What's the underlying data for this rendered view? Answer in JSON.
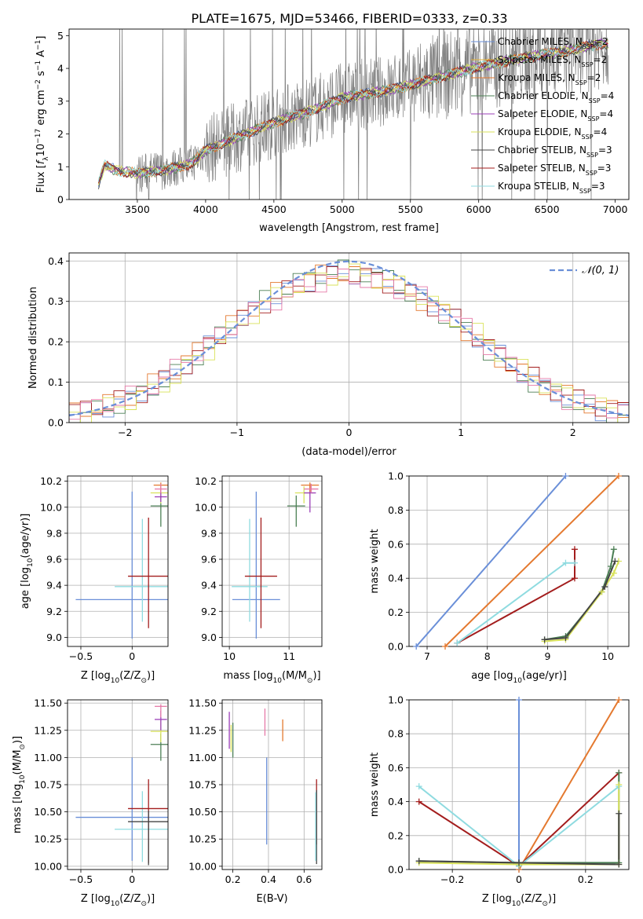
{
  "figure_title": "PLATE=1675, MJD=53466, FIBERID=0333, z=0.33",
  "colors": {
    "chabrier_miles": "#6a8fd8",
    "salpeter_miles": "#e6b43c",
    "kroupa_miles": "#e4792f",
    "chabrier_elodie": "#4b7f54",
    "salpeter_elodie": "#9b3fb8",
    "kroupa_elodie": "#d9e25a",
    "chabrier_stelib": "#444444",
    "salpeter_stelib": "#a31d1d",
    "kroupa_stelib": "#8fdbe0",
    "data": "#808080",
    "pink": "#e67aa8",
    "normal_curve": "#6a8fd8"
  },
  "chart_data": [
    {
      "id": "spectrum",
      "type": "line",
      "title": "PLATE=1675, MJD=53466, FIBERID=0333, z=0.33",
      "xlabel": "wavelength [Angstrom, rest frame]",
      "ylabel_parts": [
        "Flux [",
        "f",
        "λ",
        "10",
        "−17",
        " erg cm",
        "−2",
        " s",
        "−1",
        " A",
        "−1",
        "]"
      ],
      "xlim": [
        3000,
        7100
      ],
      "ylim": [
        0,
        5.2
      ],
      "xticks": [
        3500,
        4000,
        4500,
        5000,
        5500,
        6000,
        6500,
        7000
      ],
      "yticks": [
        0,
        1,
        2,
        3,
        4,
        5
      ],
      "grid": false,
      "legend_position": "top-right",
      "legend": [
        {
          "name": "Chabrier MILES, N",
          "sub": "SSP",
          "tail": "=2",
          "color_key": "chabrier_miles"
        },
        {
          "name": "Salpeter MILES, N",
          "sub": "SSP",
          "tail": "=2",
          "color_key": "salpeter_miles"
        },
        {
          "name": "Kroupa MILES, N",
          "sub": "SSP",
          "tail": "=2",
          "color_key": "kroupa_miles"
        },
        {
          "name": "Chabrier ELODIE, N",
          "sub": "SSP",
          "tail": "=4",
          "color_key": "chabrier_elodie"
        },
        {
          "name": "Salpeter ELODIE, N",
          "sub": "SSP",
          "tail": "=4",
          "color_key": "salpeter_elodie"
        },
        {
          "name": "Kroupa ELODIE, N",
          "sub": "SSP",
          "tail": "=4",
          "color_key": "kroupa_elodie"
        },
        {
          "name": "Chabrier STELIB, N",
          "sub": "SSP",
          "tail": "=3",
          "color_key": "chabrier_stelib"
        },
        {
          "name": "Salpeter STELIB, N",
          "sub": "SSP",
          "tail": "=3",
          "color_key": "salpeter_stelib"
        },
        {
          "name": "Kroupa STELIB, N",
          "sub": "SSP",
          "tail": "=3",
          "color_key": "kroupa_stelib"
        }
      ],
      "continuum": {
        "x": [
          3200,
          3260,
          3300,
          3400,
          3500,
          3700,
          3900,
          4000,
          4200,
          4500,
          4800,
          5000,
          5300,
          5600,
          6000,
          6300,
          6600,
          6900
        ],
        "y": [
          0.3,
          1.05,
          0.95,
          0.85,
          0.8,
          0.9,
          1.1,
          1.5,
          1.85,
          2.35,
          2.75,
          3.1,
          3.3,
          3.6,
          4.05,
          4.3,
          4.5,
          4.75
        ]
      }
    },
    {
      "id": "residuals",
      "type": "line",
      "xlabel": "(data-model)/error",
      "ylabel": "Normed distribution",
      "xlim": [
        -2.5,
        2.5
      ],
      "ylim": [
        0,
        0.42
      ],
      "xticks": [
        -2,
        -1,
        0,
        1,
        2
      ],
      "yticks": [
        0.0,
        0.1,
        0.2,
        0.3,
        0.4
      ],
      "grid": true,
      "legend_position": "top-right",
      "legend_label": "𝒩(0, 1)",
      "series": [
        {
          "color_key": "chabrier_miles",
          "values": [
            0.02,
            0.03,
            0.05,
            0.08,
            0.12,
            0.17,
            0.22,
            0.27,
            0.31,
            0.34,
            0.36,
            0.37,
            0.36,
            0.34,
            0.31,
            0.27,
            0.22,
            0.17,
            0.12,
            0.08,
            0.05,
            0.03,
            0.02
          ]
        },
        {
          "color_key": "kroupa_miles",
          "values": [
            0.03,
            0.04,
            0.06,
            0.09,
            0.13,
            0.18,
            0.23,
            0.28,
            0.32,
            0.35,
            0.37,
            0.37,
            0.36,
            0.33,
            0.3,
            0.26,
            0.21,
            0.16,
            0.12,
            0.09,
            0.06,
            0.04,
            0.03
          ]
        },
        {
          "color_key": "chabrier_elodie",
          "values": [
            0.02,
            0.03,
            0.05,
            0.08,
            0.12,
            0.17,
            0.22,
            0.28,
            0.32,
            0.35,
            0.37,
            0.38,
            0.37,
            0.34,
            0.3,
            0.26,
            0.21,
            0.16,
            0.11,
            0.08,
            0.05,
            0.03,
            0.02
          ]
        },
        {
          "color_key": "salpeter_stelib",
          "values": [
            0.03,
            0.04,
            0.06,
            0.08,
            0.12,
            0.17,
            0.22,
            0.27,
            0.31,
            0.34,
            0.36,
            0.37,
            0.36,
            0.33,
            0.3,
            0.27,
            0.22,
            0.17,
            0.13,
            0.09,
            0.06,
            0.04,
            0.03
          ]
        },
        {
          "color_key": "kroupa_elodie",
          "values": [
            0.02,
            0.03,
            0.05,
            0.07,
            0.11,
            0.16,
            0.21,
            0.26,
            0.31,
            0.34,
            0.36,
            0.37,
            0.36,
            0.34,
            0.31,
            0.27,
            0.23,
            0.18,
            0.13,
            0.09,
            0.06,
            0.04,
            0.02
          ]
        },
        {
          "color_key": "pink",
          "values": [
            0.03,
            0.04,
            0.06,
            0.09,
            0.13,
            0.18,
            0.22,
            0.27,
            0.3,
            0.33,
            0.35,
            0.36,
            0.35,
            0.33,
            0.31,
            0.27,
            0.22,
            0.17,
            0.12,
            0.08,
            0.05,
            0.04,
            0.03
          ]
        }
      ]
    },
    {
      "id": "age_vs_Z",
      "type": "scatter",
      "xlabel_parts": [
        "Z [log",
        "10",
        "(Z/Z",
        "⊙",
        ")]"
      ],
      "ylabel_parts": [
        "age  [log",
        "10",
        "(age/yr)]"
      ],
      "xlim": [
        -0.63,
        0.35
      ],
      "ylim": [
        8.93,
        10.24
      ],
      "xticks": [
        -0.5,
        0.0
      ],
      "yticks": [
        9.0,
        9.2,
        9.4,
        9.6,
        9.8,
        10.0,
        10.2
      ],
      "grid": true,
      "points": [
        {
          "color_key": "chabrier_miles",
          "x": 0.0,
          "xerr": 0.55,
          "y": 9.29,
          "yerr_low": 0.3,
          "yerr_high": 0.83
        },
        {
          "color_key": "kroupa_stelib",
          "x": 0.1,
          "xerr": 0.27,
          "y": 9.39,
          "yerr_low": 0.27,
          "yerr_high": 0.52
        },
        {
          "color_key": "salpeter_stelib",
          "x": 0.16,
          "xerr": 0.2,
          "y": 9.47,
          "yerr_low": 0.4,
          "yerr_high": 0.45
        },
        {
          "color_key": "chabrier_elodie",
          "x": 0.28,
          "xerr": 0.1,
          "y": 10.01,
          "yerr_low": 0.16,
          "yerr_high": 0.08
        },
        {
          "color_key": "kroupa_elodie",
          "x": 0.28,
          "xerr": 0.1,
          "y": 10.11,
          "yerr_low": 0.08,
          "yerr_high": 0.05
        },
        {
          "color_key": "kroupa_miles",
          "x": 0.28,
          "xerr": 0.07,
          "y": 10.17,
          "yerr_low": 0.05,
          "yerr_high": 0.02
        },
        {
          "color_key": "salpeter_elodie",
          "x": 0.28,
          "xerr": 0.06,
          "y": 10.08,
          "yerr_low": 0.04,
          "yerr_high": 0.05
        },
        {
          "color_key": "pink",
          "x": 0.28,
          "xerr": 0.06,
          "y": 10.14,
          "yerr_low": 0.03,
          "yerr_high": 0.04
        }
      ]
    },
    {
      "id": "age_vs_mass",
      "type": "scatter",
      "xlabel_parts": [
        "mass [log",
        "10",
        "(M/M",
        "⊙",
        ")]"
      ],
      "xlim": [
        9.88,
        11.55
      ],
      "ylim": [
        8.93,
        10.24
      ],
      "xticks": [
        10,
        11
      ],
      "yticks": [
        9.0,
        9.2,
        9.4,
        9.6,
        9.8,
        10.0,
        10.2
      ],
      "grid": true,
      "points": [
        {
          "color_key": "chabrier_miles",
          "x": 10.45,
          "xerr": 0.4,
          "y": 9.29,
          "yerr_low": 0.3,
          "yerr_high": 0.83
        },
        {
          "color_key": "kroupa_stelib",
          "x": 10.34,
          "xerr": 0.3,
          "y": 9.39,
          "yerr_low": 0.27,
          "yerr_high": 0.52
        },
        {
          "color_key": "salpeter_stelib",
          "x": 10.53,
          "xerr": 0.27,
          "y": 9.47,
          "yerr_low": 0.4,
          "yerr_high": 0.45
        },
        {
          "color_key": "chabrier_elodie",
          "x": 11.12,
          "xerr": 0.15,
          "y": 10.01,
          "yerr_low": 0.16,
          "yerr_high": 0.08
        },
        {
          "color_key": "kroupa_elodie",
          "x": 11.25,
          "xerr": 0.15,
          "y": 10.11,
          "yerr_low": 0.08,
          "yerr_high": 0.05
        },
        {
          "color_key": "salpeter_elodie",
          "x": 11.35,
          "xerr": 0.1,
          "y": 10.11,
          "yerr_low": 0.15,
          "yerr_high": 0.06
        },
        {
          "color_key": "kroupa_miles",
          "x": 11.35,
          "xerr": 0.15,
          "y": 10.17,
          "yerr_low": 0.05,
          "yerr_high": 0.02
        },
        {
          "color_key": "pink",
          "x": 11.37,
          "xerr": 0.12,
          "y": 10.14,
          "yerr_low": 0.03,
          "yerr_high": 0.04
        }
      ]
    },
    {
      "id": "weight_vs_age",
      "type": "line",
      "xlabel_parts": [
        "age  [log",
        "10",
        "(age/yr)]"
      ],
      "ylabel": "mass weight",
      "xlim": [
        6.7,
        10.35
      ],
      "ylim": [
        0,
        1.0
      ],
      "xticks": [
        7,
        8,
        9,
        10
      ],
      "yticks": [
        0.0,
        0.2,
        0.4,
        0.6,
        0.8,
        1.0
      ],
      "grid": true,
      "series": [
        {
          "color_key": "chabrier_miles",
          "x": [
            6.82,
            9.3
          ],
          "y": [
            0.0,
            1.0
          ]
        },
        {
          "color_key": "kroupa_miles",
          "x": [
            7.3,
            10.18
          ],
          "y": [
            0.0,
            1.0
          ]
        },
        {
          "color_key": "salpeter_stelib",
          "x": [
            7.5,
            9.45,
            9.45
          ],
          "y": [
            0.02,
            0.4,
            0.57
          ]
        },
        {
          "color_key": "kroupa_stelib",
          "x": [
            7.5,
            9.3,
            9.45
          ],
          "y": [
            0.02,
            0.49,
            0.49
          ]
        },
        {
          "color_key": "chabrier_elodie",
          "x": [
            8.95,
            9.3,
            9.9,
            10.05,
            10.1
          ],
          "y": [
            0.04,
            0.06,
            0.32,
            0.47,
            0.57
          ]
        },
        {
          "color_key": "kroupa_elodie",
          "x": [
            8.95,
            9.3,
            9.9,
            10.1,
            10.18
          ],
          "y": [
            0.03,
            0.04,
            0.32,
            0.43,
            0.5
          ]
        },
        {
          "color_key": "chabrier_stelib",
          "x": [
            8.95,
            9.3,
            9.95,
            10.12
          ],
          "y": [
            0.04,
            0.05,
            0.35,
            0.5
          ]
        }
      ]
    },
    {
      "id": "mass_vs_Z",
      "type": "scatter",
      "xlabel_parts": [
        "Z [log",
        "10",
        "(Z/Z",
        "⊙",
        ")]"
      ],
      "ylabel_parts": [
        "mass [log",
        "10",
        "(M/M",
        "⊙",
        ")]"
      ],
      "xlim": [
        -0.63,
        0.35
      ],
      "ylim": [
        9.97,
        11.53
      ],
      "xticks": [
        -0.5,
        0.0
      ],
      "yticks": [
        10.0,
        10.25,
        10.5,
        10.75,
        11.0,
        11.25,
        11.5
      ],
      "grid": true,
      "points": [
        {
          "color_key": "chabrier_miles",
          "x": 0.0,
          "xerr": 0.55,
          "y": 10.45,
          "yerr_low": 0.4,
          "yerr_high": 0.55
        },
        {
          "color_key": "kroupa_stelib",
          "x": 0.1,
          "xerr": 0.27,
          "y": 10.34,
          "yerr_low": 0.3,
          "yerr_high": 0.35
        },
        {
          "color_key": "salpeter_stelib",
          "x": 0.16,
          "xerr": 0.2,
          "y": 10.53,
          "yerr_low": 0.5,
          "yerr_high": 0.27
        },
        {
          "color_key": "chabrier_stelib",
          "x": 0.16,
          "xerr": 0.2,
          "y": 10.41,
          "yerr_low": 0.4,
          "yerr_high": 0.1
        },
        {
          "color_key": "chabrier_elodie",
          "x": 0.28,
          "xerr": 0.1,
          "y": 11.12,
          "yerr_low": 0.15,
          "yerr_high": 0.1
        },
        {
          "color_key": "kroupa_elodie",
          "x": 0.28,
          "xerr": 0.1,
          "y": 11.24,
          "yerr_low": 0.1,
          "yerr_high": 0.1
        },
        {
          "color_key": "salpeter_elodie",
          "x": 0.28,
          "xerr": 0.06,
          "y": 11.35,
          "yerr_low": 0.1,
          "yerr_high": 0.08
        },
        {
          "color_key": "pink",
          "x": 0.28,
          "xerr": 0.06,
          "y": 11.47,
          "yerr_low": 0.1,
          "yerr_high": 0.02
        }
      ]
    },
    {
      "id": "mass_vs_EBV",
      "type": "scatter",
      "xlabel": "E(B-V)",
      "xlim": [
        0.14,
        0.7
      ],
      "ylim": [
        9.97,
        11.53
      ],
      "xticks": [
        0.2,
        0.4,
        0.6
      ],
      "yticks": [
        10.0,
        10.25,
        10.5,
        10.75,
        11.0,
        11.25,
        11.5
      ],
      "grid": true,
      "points": [
        {
          "color_key": "chabrier_miles",
          "x": 0.39,
          "y": 10.6,
          "yerr_low": 0.4,
          "yerr_high": 0.4
        },
        {
          "color_key": "kroupa_miles",
          "x": 0.48,
          "y": 11.25,
          "yerr_low": 0.1,
          "yerr_high": 0.1
        },
        {
          "color_key": "pink",
          "x": 0.38,
          "y": 11.35,
          "yerr_low": 0.15,
          "yerr_high": 0.1
        },
        {
          "color_key": "salpeter_elodie",
          "x": 0.18,
          "y": 11.25,
          "yerr_low": 0.17,
          "yerr_high": 0.17
        },
        {
          "color_key": "chabrier_elodie",
          "x": 0.2,
          "y": 11.15,
          "yerr_low": 0.15,
          "yerr_high": 0.17
        },
        {
          "color_key": "kroupa_elodie",
          "x": 0.19,
          "y": 11.2,
          "yerr_low": 0.15,
          "yerr_high": 0.1
        },
        {
          "color_key": "salpeter_stelib",
          "x": 0.67,
          "y": 10.5,
          "yerr_low": 0.3,
          "yerr_high": 0.3
        },
        {
          "color_key": "chabrier_stelib",
          "x": 0.67,
          "y": 10.35,
          "yerr_low": 0.33,
          "yerr_high": 0.35
        },
        {
          "color_key": "kroupa_stelib",
          "x": 0.665,
          "y": 10.35,
          "yerr_low": 0.3,
          "yerr_high": 0.33
        }
      ]
    },
    {
      "id": "weight_vs_Z",
      "type": "line",
      "xlabel_parts": [
        "Z [log",
        "10",
        "(Z/Z",
        "⊙",
        ")]"
      ],
      "ylabel": "mass weight",
      "xlim": [
        -0.33,
        0.33
      ],
      "ylim": [
        0,
        1.0
      ],
      "xticks": [
        -0.2,
        0.0,
        0.2
      ],
      "yticks": [
        0.0,
        0.2,
        0.4,
        0.6,
        0.8,
        1.0
      ],
      "grid": true,
      "series": [
        {
          "color_key": "chabrier_miles",
          "x": [
            0.0,
            0.0
          ],
          "y": [
            0.0,
            1.0
          ]
        },
        {
          "color_key": "kroupa_miles",
          "x": [
            0.0,
            0.3
          ],
          "y": [
            0.0,
            1.0
          ]
        },
        {
          "color_key": "salpeter_stelib",
          "x": [
            -0.3,
            0.0,
            0.3
          ],
          "y": [
            0.4,
            0.02,
            0.57
          ]
        },
        {
          "color_key": "kroupa_stelib",
          "x": [
            -0.3,
            0.0,
            0.3
          ],
          "y": [
            0.49,
            0.02,
            0.49
          ]
        },
        {
          "color_key": "chabrier_elodie",
          "x": [
            -0.3,
            0.0,
            0.3,
            0.3
          ],
          "y": [
            0.05,
            0.04,
            0.04,
            0.57
          ]
        },
        {
          "color_key": "kroupa_elodie",
          "x": [
            -0.3,
            0.0,
            0.3,
            0.3
          ],
          "y": [
            0.04,
            0.03,
            0.03,
            0.5
          ]
        },
        {
          "color_key": "chabrier_stelib",
          "x": [
            -0.3,
            0.0,
            0.3,
            0.3
          ],
          "y": [
            0.05,
            0.04,
            0.03,
            0.33
          ]
        }
      ]
    }
  ]
}
